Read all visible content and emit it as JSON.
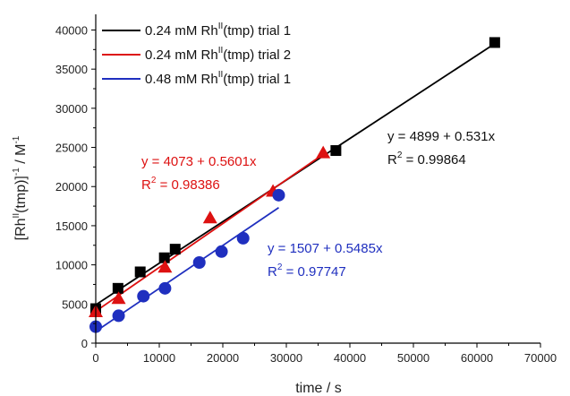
{
  "chart_data": {
    "type": "scatter",
    "xlabel": "time / s",
    "ylabel": {
      "base": "[Rh",
      "sup1": "II",
      "mid": "(tmp)]",
      "sup2": "-1",
      "unit": " / M",
      "sup3": "-1"
    },
    "xlim": [
      0,
      70000
    ],
    "ylim": [
      0,
      42000
    ],
    "xticks": [
      0,
      10000,
      20000,
      30000,
      40000,
      50000,
      60000,
      70000
    ],
    "yticks": [
      0,
      5000,
      10000,
      15000,
      20000,
      25000,
      30000,
      35000,
      40000
    ],
    "legend_position": "top-left",
    "series": [
      {
        "name": "0.24 mM Rh(tmp) trial 1",
        "legend": {
          "pre": "0.24 mM Rh",
          "sup": "II",
          "post": "(tmp) trial 1"
        },
        "color": "#000000",
        "marker": "square",
        "x": [
          0,
          3500,
          7000,
          10800,
          12500,
          37800,
          62800
        ],
        "y": [
          4400,
          7000,
          9100,
          10900,
          12000,
          24600,
          38400
        ],
        "fit": {
          "intercept": 4899,
          "slope": 0.531,
          "x_range": [
            0,
            62800
          ]
        },
        "annotation": {
          "equation": "y = 4899 + 0.531x",
          "r2_label": "R",
          "r2_sup": "2",
          "r2_value": " = 0.99864",
          "anchor_data": [
            32500,
            26800
          ]
        }
      },
      {
        "name": "0.24 mM Rh(tmp) trial 2",
        "legend": {
          "pre": "0.24 mM Rh",
          "sup": "II",
          "post": "(tmp) trial 2"
        },
        "color": "#dd1111",
        "marker": "triangle",
        "x": [
          0,
          3600,
          10900,
          18000,
          27900,
          35800
        ],
        "y": [
          4000,
          5700,
          9700,
          16000,
          19400,
          24300
        ],
        "fit": {
          "intercept": 4073,
          "slope": 0.5601,
          "x_range": [
            0,
            35800
          ]
        },
        "annotation": {
          "equation": "y = 4073 + 0.5601x",
          "r2_label": "R",
          "r2_sup": "2",
          "r2_value": " = 0.98386",
          "anchor_data": [
            5300,
            22900
          ]
        }
      },
      {
        "name": "0.48 mM Rh(tmp) trial 1",
        "legend": {
          "pre": "0.48 mM Rh",
          "sup": "II",
          "post": "(tmp) trial 1"
        },
        "color": "#1f2fbf",
        "marker": "circle",
        "x": [
          0,
          3600,
          7500,
          10900,
          16300,
          19800,
          23200,
          28800
        ],
        "y": [
          2100,
          3500,
          6000,
          7000,
          10300,
          11700,
          13400,
          18900
        ],
        "fit": {
          "intercept": 1507,
          "slope": 0.5485,
          "x_range": [
            0,
            28800
          ]
        },
        "annotation": {
          "equation": "y = 1507 + 0.5485x",
          "r2_label": "R",
          "r2_sup": "2",
          "r2_value": " = 0.97747",
          "anchor_data": [
            30000,
            11900
          ]
        }
      }
    ]
  }
}
